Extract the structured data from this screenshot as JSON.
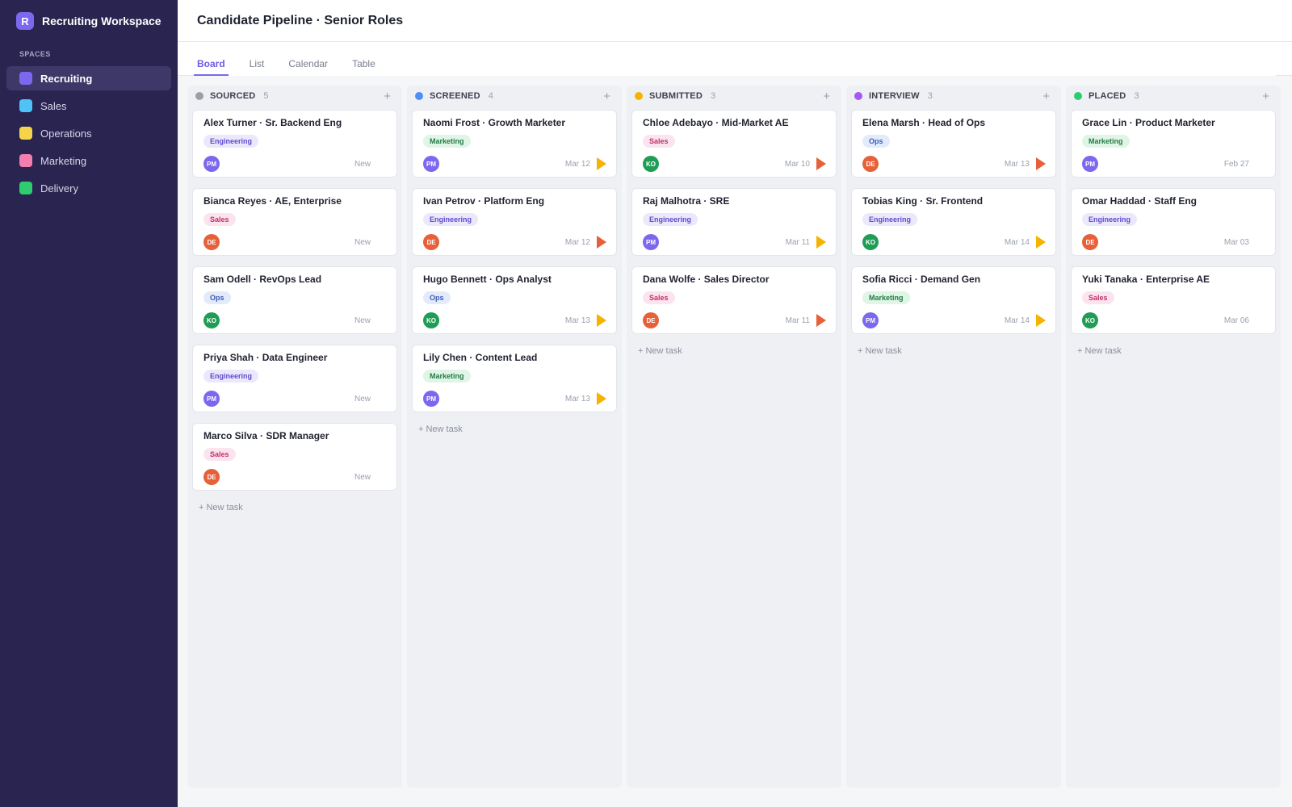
{
  "workspace": {
    "logo_letter": "R",
    "name": "Recruiting Workspace"
  },
  "sidebar": {
    "section_label": "SPACES",
    "items": [
      {
        "label": "Recruiting",
        "color": "#7b68ee",
        "active": true
      },
      {
        "label": "Sales",
        "color": "#4fc3f7",
        "active": false
      },
      {
        "label": "Operations",
        "color": "#f6d44a",
        "active": false
      },
      {
        "label": "Marketing",
        "color": "#f47eb0",
        "active": false
      },
      {
        "label": "Delivery",
        "color": "#2ecc71",
        "active": false
      }
    ]
  },
  "header": {
    "title": "Candidate Pipeline · Senior Roles"
  },
  "tabs": [
    {
      "label": "Board",
      "active": true
    },
    {
      "label": "List",
      "active": false
    },
    {
      "label": "Calendar",
      "active": false
    },
    {
      "label": "Table",
      "active": false
    }
  ],
  "new_task_label": "+ New task",
  "add_icon": "plus-icon",
  "columns": [
    {
      "title": "SOURCED",
      "count": "5",
      "color": "#9aa0a6",
      "cards": [
        {
          "title": "Alex Turner · Sr. Backend Eng",
          "tag": "Engineering",
          "tag_kind": "eng",
          "avatar": "PM",
          "due": "New",
          "priority": "none"
        },
        {
          "title": "Bianca Reyes · AE, Enterprise",
          "tag": "Sales",
          "tag_kind": "sales",
          "avatar": "DE",
          "due": "New",
          "priority": "none"
        },
        {
          "title": "Sam Odell · RevOps Lead",
          "tag": "Ops",
          "tag_kind": "ops",
          "avatar": "KO",
          "due": "New",
          "priority": "none"
        },
        {
          "title": "Priya Shah · Data Engineer",
          "tag": "Engineering",
          "tag_kind": "eng",
          "avatar": "PM",
          "due": "New",
          "priority": "none"
        },
        {
          "title": "Marco Silva · SDR Manager",
          "tag": "Sales",
          "tag_kind": "sales",
          "avatar": "DE",
          "due": "New",
          "priority": "none"
        }
      ]
    },
    {
      "title": "SCREENED",
      "count": "4",
      "color": "#4f8ef7",
      "cards": [
        {
          "title": "Naomi Frost · Growth Marketer",
          "tag": "Marketing",
          "tag_kind": "mkt",
          "avatar": "PM",
          "due": "Mar 12",
          "priority": "high"
        },
        {
          "title": "Ivan Petrov · Platform Eng",
          "tag": "Engineering",
          "tag_kind": "eng",
          "avatar": "DE",
          "due": "Mar 12",
          "priority": "urgent"
        },
        {
          "title": "Hugo Bennett · Ops Analyst",
          "tag": "Ops",
          "tag_kind": "ops",
          "avatar": "KO",
          "due": "Mar 13",
          "priority": "high"
        },
        {
          "title": "Lily Chen · Content Lead",
          "tag": "Marketing",
          "tag_kind": "mkt",
          "avatar": "PM",
          "due": "Mar 13",
          "priority": "high"
        }
      ]
    },
    {
      "title": "SUBMITTED",
      "count": "3",
      "color": "#f5b300",
      "cards": [
        {
          "title": "Chloe Adebayo · Mid-Market AE",
          "tag": "Sales",
          "tag_kind": "sales",
          "avatar": "KO",
          "due": "Mar 10",
          "priority": "urgent"
        },
        {
          "title": "Raj Malhotra · SRE",
          "tag": "Engineering",
          "tag_kind": "eng",
          "avatar": "PM",
          "due": "Mar 11",
          "priority": "high"
        },
        {
          "title": "Dana Wolfe · Sales Director",
          "tag": "Sales",
          "tag_kind": "sales",
          "avatar": "DE",
          "due": "Mar 11",
          "priority": "urgent"
        }
      ]
    },
    {
      "title": "INTERVIEW",
      "count": "3",
      "color": "#a259f7",
      "cards": [
        {
          "title": "Elena Marsh · Head of Ops",
          "tag": "Ops",
          "tag_kind": "ops",
          "avatar": "DE",
          "due": "Mar 13",
          "priority": "urgent"
        },
        {
          "title": "Tobias King · Sr. Frontend",
          "tag": "Engineering",
          "tag_kind": "eng",
          "avatar": "KO",
          "due": "Mar 14",
          "priority": "high"
        },
        {
          "title": "Sofia Ricci · Demand Gen",
          "tag": "Marketing",
          "tag_kind": "mkt",
          "avatar": "PM",
          "due": "Mar 14",
          "priority": "high"
        }
      ]
    },
    {
      "title": "PLACED",
      "count": "3",
      "color": "#2ecc71",
      "cards": [
        {
          "title": "Grace Lin · Product Marketer",
          "tag": "Marketing",
          "tag_kind": "mkt",
          "avatar": "PM",
          "due": "Feb 27",
          "priority": "none"
        },
        {
          "title": "Omar Haddad · Staff Eng",
          "tag": "Engineering",
          "tag_kind": "eng",
          "avatar": "DE",
          "due": "Mar 03",
          "priority": "none"
        },
        {
          "title": "Yuki Tanaka · Enterprise AE",
          "tag": "Sales",
          "tag_kind": "sales",
          "avatar": "KO",
          "due": "Mar 06",
          "priority": "none"
        }
      ]
    }
  ]
}
